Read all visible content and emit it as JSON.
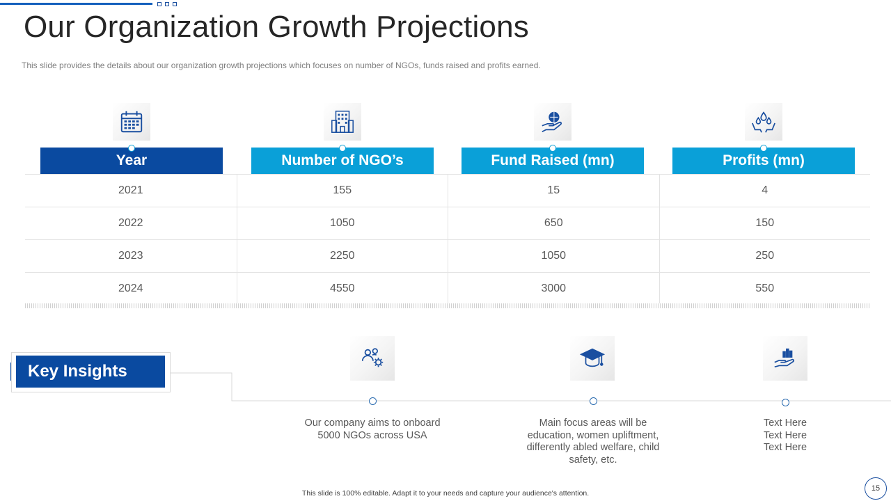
{
  "title": "Our Organization Growth Projections",
  "subtitle": "This slide provides  the details about our organization  growth projections which focuses on number of NGOs, funds raised and profits earned.",
  "table": {
    "headers": [
      "Year",
      "Number of NGO’s",
      "Fund Raised (mn)",
      "Profits (mn)"
    ],
    "header_icons": [
      "calendar-icon",
      "building-icon",
      "globe-hand-icon",
      "droplets-hands-icon"
    ],
    "rows": [
      [
        "2021",
        "155",
        "15",
        "4"
      ],
      [
        "2022",
        "1050",
        "650",
        "150"
      ],
      [
        "2023",
        "2250",
        "1050",
        "250"
      ],
      [
        "2024",
        "4550",
        "3000",
        "550"
      ]
    ]
  },
  "key_insights": {
    "label": "Key Insights",
    "items": [
      {
        "icon": "team-gear-icon",
        "text": "Our company aims to onboard 5000 NGOs across USA"
      },
      {
        "icon": "graduation-cap-icon",
        "text": "Main focus areas will be education, women upliftment, differently abled welfare, child safety, etc."
      },
      {
        "icon": "chart-hand-icon",
        "text": "Text Here Text Here Text Here"
      }
    ]
  },
  "footer": "This slide is 100% editable. Adapt it to your needs and capture your audience's attention.",
  "page_number": "15",
  "colors": {
    "dark_blue": "#0a4aa0",
    "light_blue": "#0aa0d8",
    "icon_blue": "#1a4fa0"
  }
}
